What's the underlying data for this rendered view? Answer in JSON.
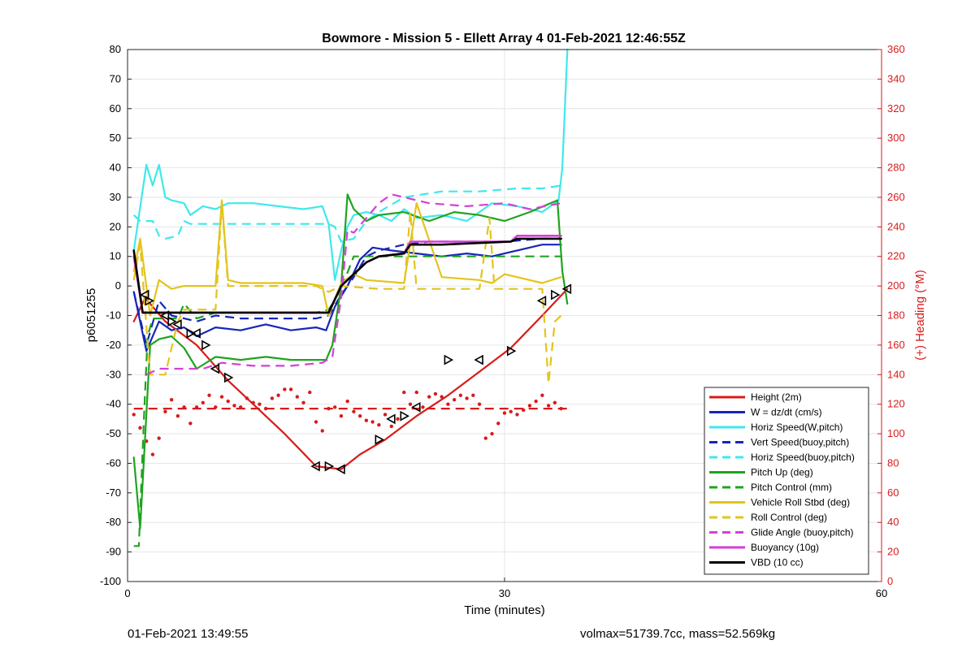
{
  "chart_data": {
    "type": "line",
    "title": "Bowmore - Mission 5 - Ellett Array 4 01-Feb-2021 12:46:55Z",
    "xlabel": "Time (minutes)",
    "ylabel": "p6051255",
    "y2label": "(+) Heading (°M)",
    "xlim": [
      0,
      60
    ],
    "ylim": [
      -100,
      80
    ],
    "y2lim": [
      0,
      360
    ],
    "xticks": [
      0,
      30,
      60
    ],
    "yticks": [
      -100,
      -90,
      -80,
      -70,
      -60,
      -50,
      -40,
      -30,
      -20,
      -10,
      0,
      10,
      20,
      30,
      40,
      50,
      60,
      70,
      80
    ],
    "y2ticks": [
      0,
      20,
      40,
      60,
      80,
      100,
      120,
      140,
      160,
      180,
      200,
      220,
      240,
      260,
      280,
      300,
      320,
      340,
      360
    ],
    "grid": true,
    "legend_position": "bottom-right",
    "colors": {
      "red": "#d81b1b",
      "blue": "#1526b8",
      "cyan": "#3fe8ec",
      "green": "#1fa31f",
      "yellow": "#e3c41c",
      "magenta": "#d63fd6",
      "black": "#000000",
      "axis2": "#d81b1b"
    },
    "series": [
      {
        "name": "Height (2m)",
        "color": "#d81b1b",
        "style": "solid",
        "width": 2.2,
        "x": [
          0.5,
          1.4,
          3,
          5.5,
          8,
          10,
          12.5,
          15,
          17,
          18.5,
          20.5,
          23,
          25.5,
          28,
          30.5,
          33,
          35
        ],
        "y": [
          -12,
          -4,
          -12,
          -20,
          -32,
          -40,
          -50,
          -61,
          -62,
          -57,
          -52,
          -44,
          -37,
          -29,
          -21,
          -10,
          -1
        ]
      },
      {
        "name": "W = dz/dt (cm/s)",
        "color": "#1526b8",
        "style": "solid",
        "width": 2.2,
        "x": [
          0.5,
          1.5,
          2.5,
          3.5,
          4.5,
          5.5,
          7,
          9,
          11,
          13,
          15,
          15.8,
          16.5,
          17.5,
          18.5,
          19.5,
          21,
          23,
          25,
          27,
          29,
          31,
          33,
          34.5
        ],
        "y": [
          -2,
          -22,
          -12,
          -15,
          -14,
          -17,
          -14,
          -15,
          -13,
          -15,
          -14,
          -15,
          -7,
          0,
          9,
          13,
          12,
          11,
          10,
          11,
          10,
          12,
          14,
          14
        ]
      },
      {
        "name": "Horiz Speed(W,pitch)",
        "color": "#3fe8ec",
        "style": "solid",
        "width": 2.2,
        "x": [
          0.5,
          1.5,
          2,
          2.5,
          3,
          3.5,
          4.5,
          5,
          6,
          7,
          8,
          10,
          12,
          14,
          15.5,
          16,
          16.5,
          17,
          17.5,
          18,
          19,
          20,
          21,
          22,
          23,
          25,
          27,
          29,
          31,
          33,
          34.3,
          34.6,
          35
        ],
        "y": [
          12,
          41,
          34,
          41,
          30,
          29,
          28,
          24,
          27,
          26,
          28,
          28,
          27,
          26,
          27,
          21,
          2,
          12,
          20,
          24,
          25,
          24,
          22,
          26,
          23,
          24,
          22,
          28,
          27,
          25,
          29,
          40,
          80
        ]
      },
      {
        "name": "Vert Speed(buoy,pitch)",
        "color": "#1526b8",
        "style": "dash",
        "width": 2.2,
        "x": [
          0.5,
          1.5,
          2.5,
          3.5,
          4.5,
          5.5,
          7,
          9,
          11,
          13,
          15,
          16,
          17,
          18,
          19,
          20,
          22,
          24,
          27,
          30,
          33,
          34.5
        ],
        "y": [
          -2,
          -20,
          -5,
          -10,
          -11,
          -12,
          -10,
          -11,
          -11,
          -11,
          -11,
          -10,
          -3,
          3,
          10,
          12,
          14,
          15,
          15,
          15,
          16,
          16
        ]
      },
      {
        "name": "Horiz Speed(buoy,pitch)",
        "color": "#3fe8ec",
        "style": "dash",
        "width": 2.2,
        "x": [
          0.5,
          1,
          2,
          2.5,
          3,
          4,
          4.5,
          5,
          8,
          12,
          16,
          16.5,
          17,
          18,
          19,
          20,
          22,
          25,
          28,
          31,
          33,
          34.5
        ],
        "y": [
          24,
          22,
          22,
          17,
          16,
          17,
          22,
          21,
          21,
          21,
          21,
          20,
          15,
          16,
          22,
          25,
          30,
          32,
          32,
          33,
          33,
          34
        ]
      },
      {
        "name": "Pitch Up (deg)",
        "color": "#1fa31f",
        "style": "solid",
        "width": 2.2,
        "x": [
          0.5,
          1,
          1.8,
          2.5,
          3.5,
          4.5,
          5.5,
          7,
          9,
          11,
          13,
          15,
          15.8,
          16.3,
          17,
          17.5,
          18,
          19,
          20,
          22,
          24,
          26,
          28,
          30,
          32,
          34.2,
          34.6,
          35
        ],
        "y": [
          -58,
          -82,
          -20,
          -18,
          -17,
          -21,
          -28,
          -24,
          -25,
          -24,
          -25,
          -25,
          -25,
          -20,
          0,
          31,
          26,
          22,
          24,
          25,
          22,
          25,
          24,
          22,
          25,
          29,
          5,
          -6
        ]
      },
      {
        "name": "Pitch Control (mm)",
        "color": "#1fa31f",
        "style": "dash",
        "width": 2.2,
        "x": [
          0.5,
          0.9,
          1.3,
          1.6,
          2,
          3,
          4,
          4.5,
          5.5,
          7,
          9,
          15,
          16,
          17,
          18,
          20,
          25,
          30,
          34.5
        ],
        "y": [
          -88,
          -88,
          -45,
          -17,
          -11,
          -11,
          -11,
          -6,
          -11,
          -9,
          -9,
          -9,
          -8,
          -1,
          10,
          10,
          10,
          10,
          10
        ]
      },
      {
        "name": "Vehicle Roll Stbd (deg)",
        "color": "#e3c41c",
        "style": "solid",
        "width": 2.2,
        "x": [
          0.5,
          1,
          1.8,
          2.5,
          3.5,
          4.5,
          6,
          7,
          7.5,
          8,
          9,
          12,
          14,
          15.5,
          16,
          17,
          18,
          19,
          22,
          23,
          25,
          28,
          29,
          30,
          33,
          34.5
        ],
        "y": [
          5,
          16,
          -10,
          2,
          -1,
          0,
          0,
          0,
          29,
          2,
          1,
          1,
          1,
          0,
          -10,
          1,
          4,
          2,
          1,
          28,
          3,
          2,
          1,
          4,
          1,
          3
        ]
      },
      {
        "name": "Roll Control (deg)",
        "color": "#e3c41c",
        "style": "dash",
        "width": 2.2,
        "x": [
          0.5,
          1,
          1.8,
          2.5,
          3,
          4,
          4.5,
          7,
          7.5,
          8,
          15,
          16,
          17,
          20,
          22,
          22.5,
          23,
          25,
          28,
          28.8,
          29.2,
          30,
          33,
          33.5,
          34,
          34.5
        ],
        "y": [
          2,
          14,
          -30,
          -30,
          -30,
          -12,
          -8,
          -8,
          28,
          0,
          0,
          -2,
          0,
          -1,
          -1,
          25,
          -1,
          -1,
          -1,
          23,
          -1,
          -1,
          -1,
          -33,
          -12,
          -10
        ]
      },
      {
        "name": "Glide Angle (buoy,pitch)",
        "color": "#d63fd6",
        "style": "dash",
        "width": 2.2,
        "x": [
          1.5,
          2.5,
          4.5,
          6,
          7.5,
          10,
          13,
          15.5,
          16.3,
          17,
          17.5,
          18,
          20,
          21,
          24,
          27,
          30,
          32,
          34.5
        ],
        "y": [
          -30,
          -28,
          -28,
          -28,
          -26,
          -27,
          -27,
          -26,
          -24,
          -4,
          19,
          18,
          28,
          31,
          28,
          27,
          28,
          26,
          28
        ]
      },
      {
        "name": "Buoyancy (10g)",
        "color": "#d63fd6",
        "style": "solid",
        "width": 2.6,
        "x": [
          0.5,
          1.2,
          16,
          17,
          19,
          20,
          22,
          22.5,
          25,
          30.5,
          31,
          34.5
        ],
        "y": [
          10,
          -9,
          -9,
          0,
          8,
          10,
          11,
          15,
          15,
          15,
          17,
          17
        ]
      },
      {
        "name": "VBD (10 cc)",
        "color": "#000000",
        "style": "solid",
        "width": 2.6,
        "x": [
          0.5,
          1.2,
          16,
          17,
          19,
          20,
          22,
          22.5,
          25,
          30.5,
          31,
          34.5
        ],
        "y": [
          12,
          -9,
          -9,
          0,
          8,
          10,
          11,
          14,
          14,
          15,
          16,
          16
        ]
      }
    ],
    "heading_points": {
      "name": "Heading (dots)",
      "color": "#d81b1b",
      "axis": "right",
      "x": [
        0.5,
        1,
        1.5,
        2,
        2.5,
        3,
        3.5,
        4,
        4.5,
        5,
        5.5,
        6,
        6.5,
        7,
        7.5,
        8,
        8.5,
        9,
        9.5,
        10,
        10.5,
        11,
        11.5,
        12,
        12.5,
        13,
        13.5,
        14,
        14.5,
        15,
        15.5,
        16,
        16.5,
        17,
        17.5,
        18,
        18.5,
        19,
        19.5,
        20,
        20.5,
        21,
        21.5,
        22,
        22.5,
        23,
        23.5,
        24,
        24.5,
        25,
        25.5,
        26,
        26.5,
        27,
        27.5,
        28,
        28.5,
        29,
        29.5,
        30,
        30.5,
        31,
        31.5,
        32,
        32.5,
        33,
        33.5,
        34,
        34.5
      ],
      "y": [
        113,
        104,
        95,
        86,
        97,
        115,
        123,
        112,
        118,
        107,
        118,
        121,
        126,
        118,
        125,
        122,
        119,
        118,
        124,
        121,
        120,
        117,
        124,
        126,
        130,
        130,
        125,
        121,
        128,
        108,
        102,
        117,
        118,
        112,
        122,
        115,
        112,
        109,
        108,
        106,
        113,
        105,
        110,
        128,
        120,
        128,
        118,
        125,
        127,
        125,
        120,
        123,
        126,
        124,
        126,
        120,
        97,
        100,
        107,
        114,
        115,
        113,
        116,
        119,
        122,
        126,
        119,
        121,
        117
      ]
    },
    "heading_mean": {
      "name": "Heading mean",
      "color": "#d81b1b",
      "axis": "right",
      "x": [
        0.5,
        35
      ],
      "y": [
        117,
        117
      ]
    },
    "height_markers": {
      "name": "Height markers",
      "color": "#000000",
      "x": [
        1.4,
        1.7,
        3,
        3.5,
        4,
        5,
        5.5,
        6.2,
        7,
        8,
        15,
        16,
        17,
        20,
        21,
        22,
        23,
        25.5,
        28,
        30.5,
        33,
        34,
        35
      ],
      "y": [
        -3,
        -5,
        -10,
        -12,
        -13,
        -16,
        -16,
        -20,
        -28,
        -31,
        -61,
        -61,
        -62,
        -52,
        -45,
        -44,
        -41,
        -25,
        -25,
        -22,
        -5,
        -3,
        -1
      ]
    }
  },
  "footer": {
    "left": "01-Feb-2021 13:49:55",
    "right": "volmax=51739.7cc, mass=52.569kg"
  }
}
